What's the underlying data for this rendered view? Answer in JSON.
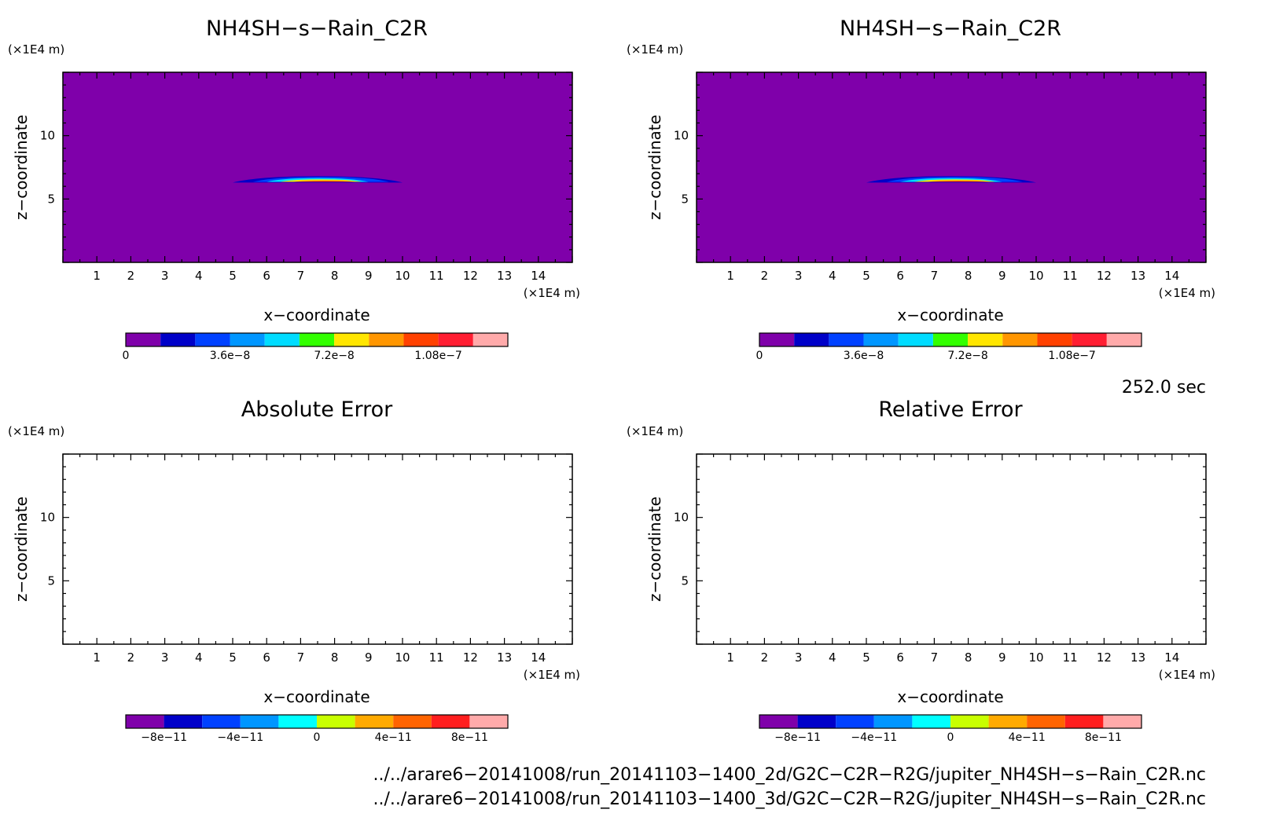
{
  "colors": {
    "background_field": "#7f00aa",
    "frame": "#000000"
  },
  "panels": [
    {
      "id": "top-left",
      "title": "NH4SH−s−Rain_C2R",
      "xlabel": "x−coordinate",
      "ylabel": "z−coordinate",
      "x_unit": "(×1E4 m)",
      "y_unit": "(×1E4 m)",
      "filled": true,
      "colorbar": {
        "colors": [
          "#7f00aa",
          "#0000c8",
          "#0041ff",
          "#0096ff",
          "#00dcff",
          "#32ff00",
          "#ffe600",
          "#ff9600",
          "#ff4100",
          "#ff1e32",
          "#ffaaaa"
        ],
        "labels": [
          "0",
          "3.6e−8",
          "7.2e−8",
          "1.08e−7"
        ],
        "label_values": [
          0,
          3.6e-08,
          7.2e-08,
          1.08e-07
        ],
        "min": 0,
        "max": 1.32e-07
      }
    },
    {
      "id": "top-right",
      "title": "NH4SH−s−Rain_C2R",
      "xlabel": "x−coordinate",
      "ylabel": "z−coordinate",
      "x_unit": "(×1E4 m)",
      "y_unit": "(×1E4 m)",
      "filled": true,
      "colorbar": {
        "colors": [
          "#7f00aa",
          "#0000c8",
          "#0041ff",
          "#0096ff",
          "#00dcff",
          "#32ff00",
          "#ffe600",
          "#ff9600",
          "#ff4100",
          "#ff1e32",
          "#ffaaaa"
        ],
        "labels": [
          "0",
          "3.6e−8",
          "7.2e−8",
          "1.08e−7"
        ],
        "label_values": [
          0,
          3.6e-08,
          7.2e-08,
          1.08e-07
        ],
        "min": 0,
        "max": 1.32e-07
      }
    },
    {
      "id": "bottom-left",
      "title": "Absolute Error",
      "xlabel": "x−coordinate",
      "ylabel": "z−coordinate",
      "x_unit": "(×1E4 m)",
      "y_unit": "(×1E4 m)",
      "filled": false,
      "colorbar": {
        "colors": [
          "#7f00aa",
          "#0000c8",
          "#0041ff",
          "#0096ff",
          "#00ffff",
          "#c8ff00",
          "#ffaa00",
          "#ff6400",
          "#ff1e1e",
          "#ffaaaa"
        ],
        "labels": [
          "−8e−11",
          "−4e−11",
          "0",
          "4e−11",
          "8e−11"
        ],
        "label_values": [
          -8e-11,
          -4e-11,
          0,
          4e-11,
          8e-11
        ],
        "min": -1e-10,
        "max": 1e-10
      }
    },
    {
      "id": "bottom-right",
      "title": "Relative Error",
      "xlabel": "x−coordinate",
      "ylabel": "z−coordinate",
      "x_unit": "(×1E4 m)",
      "y_unit": "(×1E4 m)",
      "filled": false,
      "colorbar": {
        "colors": [
          "#7f00aa",
          "#0000c8",
          "#0041ff",
          "#0096ff",
          "#00ffff",
          "#c8ff00",
          "#ffaa00",
          "#ff6400",
          "#ff1e1e",
          "#ffaaaa"
        ],
        "labels": [
          "−8e−11",
          "−4e−11",
          "0",
          "4e−11",
          "8e−11"
        ],
        "label_values": [
          -8e-11,
          -4e-11,
          0,
          4e-11,
          8e-11
        ],
        "min": -1e-10,
        "max": 1e-10
      }
    }
  ],
  "time_label": "252.0 sec",
  "file_paths": [
    "../../arare6−20141008/run_20141103−1400_2d/G2C−C2R−R2G/jupiter_NH4SH−s−Rain_C2R.nc",
    "../../arare6−20141008/run_20141103−1400_3d/G2C−C2R−R2G/jupiter_NH4SH−s−Rain_C2R.nc"
  ],
  "chart_data": [
    {
      "type": "heatmap",
      "title": "NH4SH−s−Rain_C2R",
      "xlabel": "x−coordinate",
      "ylabel": "z−coordinate",
      "x_unit": "(×1E4 m)",
      "y_unit": "(×1E4 m)",
      "xlim": [
        0,
        15
      ],
      "ylim": [
        0,
        15
      ],
      "x_ticks": [
        1,
        2,
        3,
        4,
        5,
        6,
        7,
        8,
        9,
        10,
        11,
        12,
        13,
        14
      ],
      "y_ticks": [
        5,
        10
      ],
      "background_value": 0,
      "feature": {
        "description_levels": [
          {
            "value": 1.2e-08,
            "x_range": [
              5.0,
              10.0
            ],
            "z_range": [
              6.3,
              6.8
            ]
          },
          {
            "value": 2.4e-08,
            "x_range": [
              5.6,
              9.6
            ],
            "z_range": [
              6.35,
              6.75
            ]
          },
          {
            "value": 4.8e-08,
            "x_range": [
              6.0,
              9.0
            ],
            "z_range": [
              6.35,
              6.65
            ]
          },
          {
            "value": 7.2e-08,
            "x_range": [
              6.4,
              8.8
            ],
            "z_range": [
              6.35,
              6.55
            ]
          },
          {
            "value": 9.6e-08,
            "x_range": [
              6.8,
              8.6
            ],
            "z_range": [
              6.35,
              6.45
            ]
          }
        ]
      }
    },
    {
      "type": "heatmap",
      "title": "NH4SH−s−Rain_C2R",
      "xlabel": "x−coordinate",
      "ylabel": "z−coordinate",
      "x_unit": "(×1E4 m)",
      "y_unit": "(×1E4 m)",
      "xlim": [
        0,
        15
      ],
      "ylim": [
        0,
        15
      ],
      "x_ticks": [
        1,
        2,
        3,
        4,
        5,
        6,
        7,
        8,
        9,
        10,
        11,
        12,
        13,
        14
      ],
      "y_ticks": [
        5,
        10
      ],
      "background_value": 0,
      "feature": {
        "description_levels": [
          {
            "value": 1.2e-08,
            "x_range": [
              5.0,
              10.0
            ],
            "z_range": [
              6.3,
              6.8
            ]
          },
          {
            "value": 2.4e-08,
            "x_range": [
              5.6,
              9.6
            ],
            "z_range": [
              6.35,
              6.75
            ]
          },
          {
            "value": 4.8e-08,
            "x_range": [
              6.0,
              9.0
            ],
            "z_range": [
              6.35,
              6.65
            ]
          },
          {
            "value": 7.2e-08,
            "x_range": [
              6.4,
              8.8
            ],
            "z_range": [
              6.35,
              6.55
            ]
          },
          {
            "value": 9.6e-08,
            "x_range": [
              6.8,
              8.6
            ],
            "z_range": [
              6.35,
              6.45
            ]
          }
        ]
      }
    },
    {
      "type": "heatmap",
      "title": "Absolute Error",
      "xlabel": "x−coordinate",
      "ylabel": "z−coordinate",
      "x_unit": "(×1E4 m)",
      "y_unit": "(×1E4 m)",
      "xlim": [
        0,
        15
      ],
      "ylim": [
        0,
        15
      ],
      "x_ticks": [
        1,
        2,
        3,
        4,
        5,
        6,
        7,
        8,
        9,
        10,
        11,
        12,
        13,
        14
      ],
      "y_ticks": [
        5,
        10
      ],
      "values": "empty"
    },
    {
      "type": "heatmap",
      "title": "Relative Error",
      "xlabel": "x−coordinate",
      "ylabel": "z−coordinate",
      "x_unit": "(×1E4 m)",
      "y_unit": "(×1E4 m)",
      "xlim": [
        0,
        15
      ],
      "ylim": [
        0,
        15
      ],
      "x_ticks": [
        1,
        2,
        3,
        4,
        5,
        6,
        7,
        8,
        9,
        10,
        11,
        12,
        13,
        14
      ],
      "y_ticks": [
        5,
        10
      ],
      "values": "empty"
    }
  ]
}
